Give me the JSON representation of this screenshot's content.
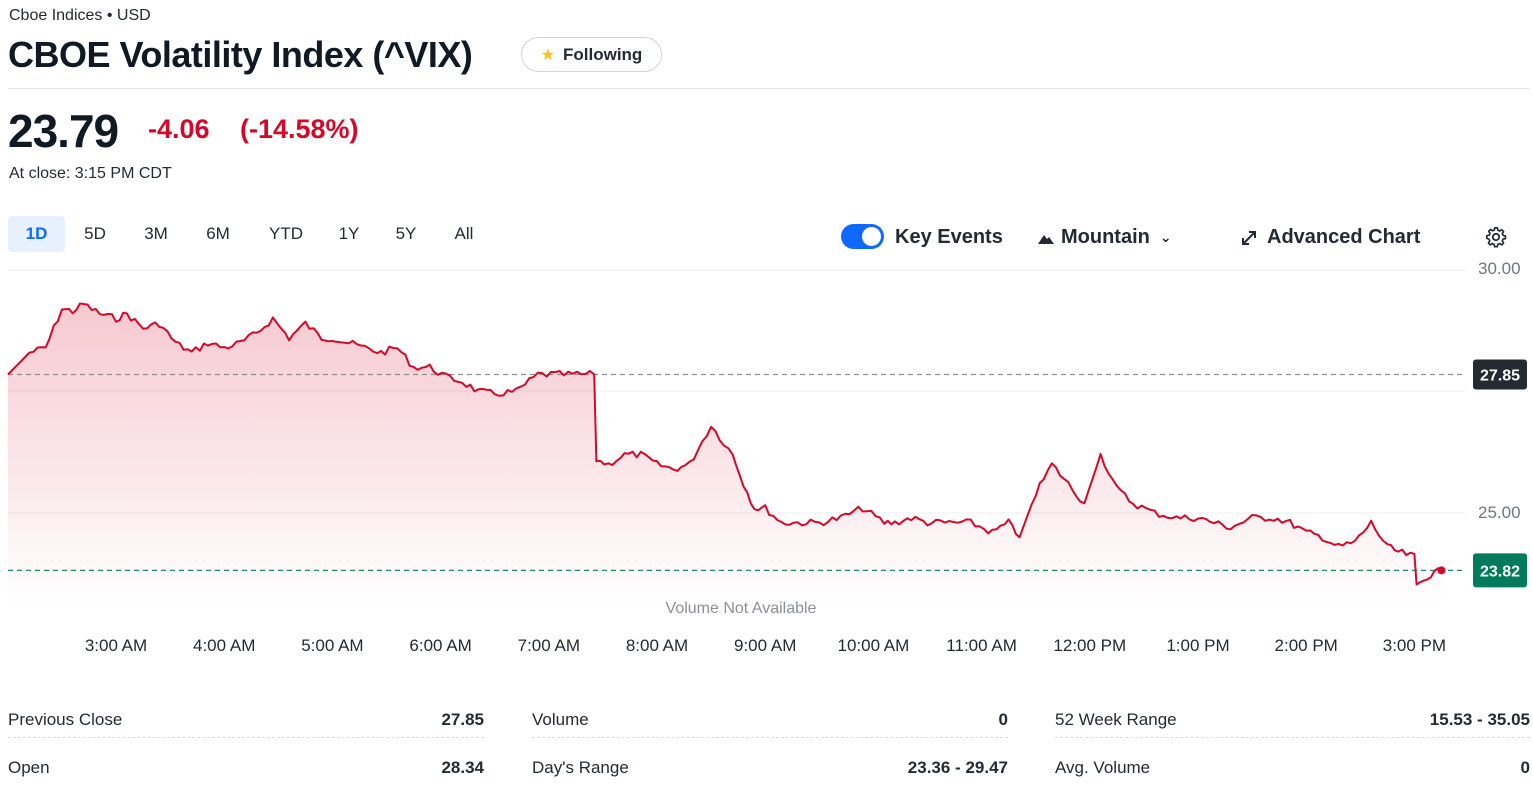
{
  "header": {
    "exchange": "Cboe Indices • USD",
    "title": "CBOE Volatility Index (^VIX)",
    "follow_label": "Following"
  },
  "quote": {
    "price": "23.79",
    "change": "-4.06",
    "change_pct": "(-14.58%)",
    "close_time": "At close: 3:15 PM CDT"
  },
  "ranges": [
    "1D",
    "5D",
    "3M",
    "6M",
    "YTD",
    "1Y",
    "5Y",
    "All"
  ],
  "active_range": "1D",
  "toolbar": {
    "key_events_label": "Key Events",
    "key_events_on": true,
    "chart_type_label": "Mountain",
    "advanced_label": "Advanced Chart"
  },
  "colors": {
    "line": "#d4092a",
    "accent": "#0f69ff",
    "prev_close_badge": "#232a31",
    "last_badge": "#017b5b"
  },
  "chart_data": {
    "type": "area",
    "x_labels": [
      "3:00 AM",
      "4:00 AM",
      "5:00 AM",
      "6:00 AM",
      "7:00 AM",
      "8:00 AM",
      "9:00 AM",
      "10:00 AM",
      "11:00 AM",
      "12:00 PM",
      "1:00 PM",
      "2:00 PM",
      "3:00 PM"
    ],
    "y_ticks": [
      "30.00",
      "25.00"
    ],
    "ylim": [
      23.0,
      30.0
    ],
    "previous_close": 27.85,
    "previous_close_label": "27.85",
    "last_label": "23.82",
    "volume_note": "Volume Not Available",
    "series": [
      {
        "x": [
          2.0,
          2.2,
          2.35,
          2.5,
          2.6,
          2.7,
          2.85,
          3.0,
          3.1,
          3.25,
          3.4,
          3.55,
          3.7,
          3.85,
          4.0,
          4.15,
          4.3,
          4.45,
          4.6,
          4.75,
          4.9,
          5.0,
          5.15,
          5.3,
          5.45,
          5.6,
          5.75,
          5.9,
          6.05,
          6.2,
          6.35,
          6.5,
          6.7,
          6.9,
          7.1,
          7.3,
          7.42,
          7.44,
          7.55,
          7.7,
          7.85,
          8.0,
          8.15,
          8.3,
          8.5,
          8.7,
          8.8,
          8.9,
          9.0,
          9.15,
          9.3,
          9.5,
          9.7,
          9.9,
          10.1,
          10.2,
          10.35,
          10.5,
          10.7,
          10.9,
          11.1,
          11.25,
          11.35,
          11.5,
          11.65,
          11.8,
          11.95,
          12.1,
          12.25,
          12.4,
          12.6,
          12.8,
          13.0,
          13.15,
          13.3,
          13.5,
          13.7,
          13.85,
          14.0,
          14.15,
          14.3,
          14.45,
          14.6,
          14.75,
          14.85,
          15.0,
          15.02,
          15.12,
          15.25
        ],
        "y": [
          27.85,
          28.3,
          28.4,
          29.2,
          29.15,
          29.3,
          29.1,
          29.0,
          29.1,
          28.8,
          28.9,
          28.5,
          28.3,
          28.5,
          28.4,
          28.5,
          28.7,
          29.0,
          28.6,
          28.9,
          28.6,
          28.6,
          28.5,
          28.4,
          28.3,
          28.4,
          28.0,
          28.0,
          27.8,
          27.7,
          27.5,
          27.45,
          27.5,
          27.85,
          27.85,
          27.85,
          27.85,
          26.1,
          26.0,
          26.2,
          26.2,
          26.0,
          25.9,
          26.0,
          26.8,
          26.2,
          25.6,
          25.1,
          25.1,
          24.8,
          24.8,
          24.8,
          24.9,
          25.1,
          24.8,
          24.8,
          24.9,
          24.8,
          24.8,
          24.8,
          24.6,
          24.8,
          24.5,
          25.4,
          26.0,
          25.6,
          25.2,
          26.2,
          25.5,
          25.2,
          25.0,
          24.9,
          24.9,
          24.8,
          24.7,
          24.9,
          24.9,
          24.8,
          24.6,
          24.5,
          24.3,
          24.4,
          24.8,
          24.3,
          24.2,
          24.1,
          23.5,
          23.7,
          23.82
        ]
      }
    ]
  },
  "stats": [
    {
      "label": "Previous Close",
      "value": "27.85"
    },
    {
      "label": "Volume",
      "value": "0"
    },
    {
      "label": "52 Week Range",
      "value": "15.53 - 35.05"
    },
    {
      "label": "Open",
      "value": "28.34"
    },
    {
      "label": "Day's Range",
      "value": "23.36 - 29.47"
    },
    {
      "label": "Avg. Volume",
      "value": "0"
    }
  ]
}
